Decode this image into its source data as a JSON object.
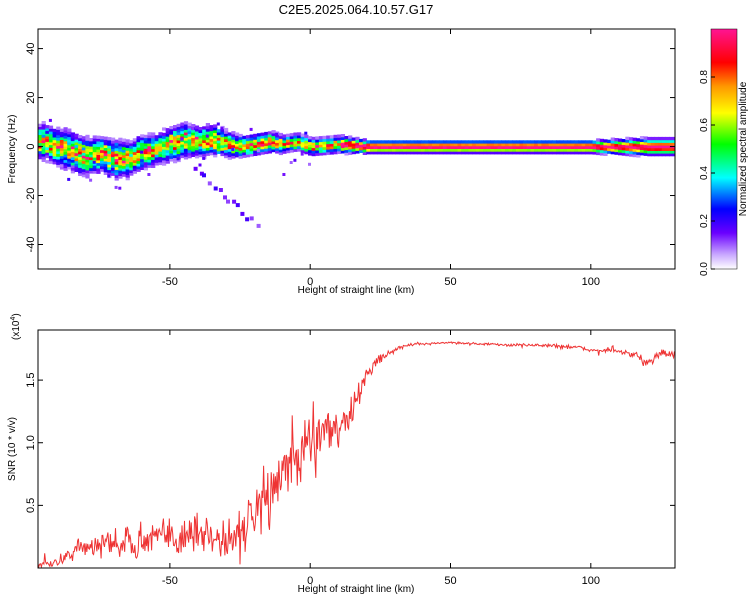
{
  "title": "C2E5.2025.064.10.57.G17",
  "chart_data": [
    {
      "type": "heatmap",
      "xlabel": "Height of straight line (km)",
      "ylabel": "Frequency (Hz)",
      "xlim": [
        -97,
        130
      ],
      "ylim": [
        -50,
        48
      ],
      "x_ticks": [
        -50,
        0,
        50,
        100
      ],
      "y_ticks": [
        -40,
        -20,
        0,
        20,
        40
      ],
      "x_tick_labels": [
        "-50",
        "0",
        "50",
        "100"
      ],
      "y_tick_labels": [
        "-40",
        "-20",
        "0",
        "20",
        "40"
      ],
      "colorbar": {
        "label": "Normalized spectral amplitude",
        "range": [
          0,
          1
        ],
        "ticks": [
          0.0,
          0.2,
          0.4,
          0.6,
          0.8
        ],
        "tick_labels": [
          "0.0",
          "0.2",
          "0.4",
          "0.6",
          "0.8"
        ],
        "colormap": "rainbow (white-violet-blue-cyan-green-yellow-red-magenta)"
      },
      "ridge": {
        "x": [
          -95,
          -90,
          -85,
          -80,
          -75,
          -70,
          -65,
          -60,
          -55,
          -50,
          -45,
          -40,
          -35,
          -30,
          -25,
          -20,
          -15,
          -10,
          -5,
          0,
          10,
          20,
          40,
          60,
          80,
          100,
          120,
          130
        ],
        "freq": [
          2,
          0,
          -2,
          -4,
          -3,
          -5,
          -5,
          -2,
          -1,
          1,
          3,
          2,
          3,
          1,
          0,
          1,
          2,
          1,
          2,
          0,
          1,
          0,
          0,
          0,
          0,
          0,
          0,
          0
        ],
        "spread_hz": [
          8,
          9,
          9,
          9,
          8,
          9,
          8,
          8,
          7,
          8,
          8,
          7,
          7,
          6,
          5,
          5,
          5,
          4,
          4,
          4,
          4,
          3,
          3,
          3,
          3,
          3,
          4,
          4
        ]
      }
    },
    {
      "type": "line",
      "xlabel": "Height of straight line (km)",
      "ylabel": "SNR (10 * v/v)",
      "y_multiplier": "(x10",
      "y_multiplier_exp": "4",
      "y_multiplier_close": ")",
      "xlim": [
        -97,
        130
      ],
      "ylim": [
        0,
        1.9
      ],
      "x_ticks": [
        -50,
        0,
        50,
        100
      ],
      "y_ticks": [
        0.5,
        1.0,
        1.5
      ],
      "x_tick_labels": [
        "-50",
        "0",
        "50",
        "100"
      ],
      "y_tick_labels": [
        "0.5",
        "1.0",
        "1.5"
      ],
      "color": "#ee3333",
      "trend": {
        "x": [
          -97,
          -90,
          -85,
          -80,
          -70,
          -60,
          -50,
          -40,
          -30,
          -25,
          -20,
          -15,
          -10,
          -5,
          0,
          5,
          10,
          15,
          20,
          25,
          30,
          35,
          40,
          50,
          60,
          70,
          80,
          90,
          95,
          100,
          110,
          115,
          120,
          125,
          130
        ],
        "y": [
          0.02,
          0.05,
          0.12,
          0.18,
          0.2,
          0.22,
          0.25,
          0.27,
          0.25,
          0.3,
          0.4,
          0.6,
          0.75,
          0.85,
          1.05,
          1.15,
          1.1,
          1.25,
          1.55,
          1.68,
          1.74,
          1.78,
          1.79,
          1.8,
          1.79,
          1.78,
          1.78,
          1.77,
          1.76,
          1.74,
          1.73,
          1.7,
          1.65,
          1.72,
          1.7
        ]
      },
      "noise": {
        "x": [
          -97,
          -80,
          -60,
          -40,
          -25,
          -15,
          -5,
          5,
          15,
          20,
          25,
          30,
          40,
          80,
          90,
          100,
          110,
          120,
          130
        ],
        "amplitude": [
          0.02,
          0.14,
          0.2,
          0.25,
          0.3,
          0.35,
          0.32,
          0.3,
          0.18,
          0.08,
          0.05,
          0.03,
          0.015,
          0.015,
          0.03,
          0.02,
          0.02,
          0.07,
          0.04
        ]
      }
    }
  ]
}
